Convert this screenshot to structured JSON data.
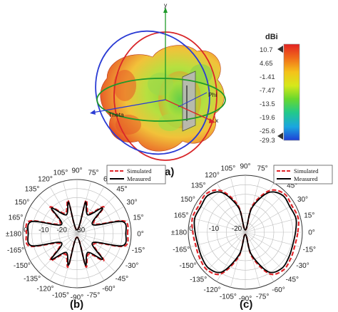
{
  "figure": {
    "panel_a": {
      "label": "(a)",
      "axis_labels": {
        "x": "x",
        "y": "y",
        "phi": "Phi",
        "theta": "Theta"
      },
      "colorbar": {
        "unit": "dBi",
        "ticks": [
          "10.7",
          "4.65",
          "-1.41",
          "-7.47",
          "-13.5",
          "-19.6",
          "-25.6",
          "-29.3"
        ],
        "colors": [
          "#e32222",
          "#f06a1a",
          "#f5c21a",
          "#d6e81a",
          "#68d82e",
          "#22c98a",
          "#1aa6e0",
          "#1f3fd6"
        ]
      }
    },
    "panel_b": {
      "label": "(b)"
    },
    "panel_c": {
      "label": "(c)"
    }
  },
  "chart_data": [
    {
      "type": "polar",
      "panel": "(b)",
      "angle_labels": [
        "0°",
        "15°",
        "30°",
        "45°",
        "60°",
        "75°",
        "90°",
        "105°",
        "120°",
        "135°",
        "150°",
        "165°",
        "±180",
        "-165°",
        "-150°",
        "-135°",
        "-120°",
        "-105°",
        "-90°",
        "-75°",
        "-60°",
        "-45°",
        "-30°",
        "-15°"
      ],
      "radial_tick_labels": [
        "0",
        "-10",
        "-20",
        "-30"
      ],
      "rlim": [
        -30,
        0
      ],
      "legend": {
        "placement": "top-right",
        "entries": [
          "Simulated",
          "Measured"
        ]
      },
      "series": [
        {
          "name": "Simulated",
          "style": "dashed",
          "color": "#e0262a",
          "theta_deg": [
            0,
            15,
            30,
            45,
            60,
            75,
            90,
            105,
            120,
            135,
            150,
            165,
            180,
            -165,
            -150,
            -135,
            -120,
            -105,
            -90,
            -75,
            -60,
            -45,
            -30,
            -15
          ],
          "r_db": [
            -2,
            -3,
            -19,
            -9,
            -17,
            -11,
            -28,
            -11,
            -17,
            -9,
            -19,
            -3,
            -2,
            -3,
            -19,
            -9,
            -17,
            -11,
            -28,
            -11,
            -17,
            -9,
            -19,
            -3
          ]
        },
        {
          "name": "Measured",
          "style": "solid",
          "color": "#000000",
          "theta_deg": [
            0,
            15,
            30,
            45,
            60,
            75,
            90,
            105,
            120,
            135,
            150,
            165,
            180,
            -165,
            -150,
            -135,
            -120,
            -105,
            -90,
            -75,
            -60,
            -45,
            -30,
            -15
          ],
          "r_db": [
            -3,
            -4,
            -20,
            -10,
            -18,
            -12,
            -28,
            -12,
            -18,
            -10,
            -20,
            -4,
            -3,
            -4,
            -20,
            -10,
            -18,
            -12,
            -28,
            -12,
            -18,
            -10,
            -20,
            -4
          ]
        }
      ]
    },
    {
      "type": "polar",
      "panel": "(c)",
      "angle_labels": [
        "0°",
        "15°",
        "30°",
        "45°",
        "60°",
        "75°",
        "90°",
        "105°",
        "120°",
        "135°",
        "150°",
        "165°",
        "±180",
        "-165°",
        "-150°",
        "-135°",
        "-120°",
        "-105°",
        "-90°",
        "-75°",
        "-60°",
        "-45°",
        "-30°",
        "-15°"
      ],
      "radial_tick_labels": [
        "0",
        "-10",
        "-20"
      ],
      "rlim": [
        -25,
        0
      ],
      "legend": {
        "placement": "top-right",
        "entries": [
          "Simulated",
          "Measured"
        ]
      },
      "series": [
        {
          "name": "Simulated",
          "style": "dashed",
          "color": "#e0262a",
          "theta_deg": [
            0,
            15,
            30,
            45,
            60,
            75,
            90,
            105,
            120,
            135,
            150,
            165,
            180,
            -165,
            -150,
            -135,
            -120,
            -105,
            -90,
            -75,
            -60,
            -45,
            -30,
            -15
          ],
          "r_db": [
            -2,
            -1,
            -1.5,
            -1,
            -4,
            -13,
            -24,
            -13,
            -4,
            -1,
            -1.5,
            -1,
            -2,
            -2.5,
            -2,
            -1.5,
            -4,
            -14,
            -24,
            -14,
            -4,
            -1.5,
            -2,
            -2.5
          ]
        },
        {
          "name": "Measured",
          "style": "solid",
          "color": "#000000",
          "theta_deg": [
            0,
            15,
            30,
            45,
            60,
            75,
            90,
            105,
            120,
            135,
            150,
            165,
            180,
            -165,
            -150,
            -135,
            -120,
            -105,
            -90,
            -75,
            -60,
            -45,
            -30,
            -15
          ],
          "r_db": [
            -3,
            -2,
            -2.5,
            -2,
            -5,
            -14,
            -24,
            -14,
            -5,
            -2,
            -2.5,
            -2,
            -3,
            -3.5,
            -3,
            -2.5,
            -5,
            -15,
            -24,
            -15,
            -5,
            -2.5,
            -3,
            -3.5
          ]
        }
      ]
    }
  ]
}
